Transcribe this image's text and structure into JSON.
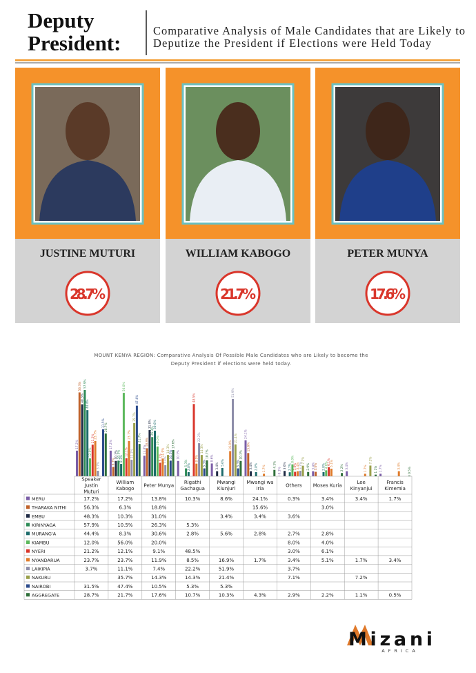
{
  "header": {
    "title": [
      "Deputy",
      "President:"
    ],
    "subtitle": [
      "Comparative Analysis of Male Candidates that are Likely to",
      "Deputize the President if Elections were Held Today"
    ]
  },
  "candidates": [
    {
      "name": "JUSTINE MUTURI",
      "percent": "28.7%"
    },
    {
      "name": "WILLIAM KABOGO",
      "percent": "21.7%"
    },
    {
      "name": "PETER MUNYA",
      "percent": "17.6%"
    }
  ],
  "chart_data": {
    "type": "bar",
    "title": [
      "MOUNT KENYA REGION: Comparative Analysis Of Possible Male Candidates who are Likely to become the",
      "Deputy President if elections were held today."
    ],
    "categories": [
      "Speaker Justin Muturi",
      "William Kabogo",
      "Peter Munya",
      "Rigathi Gachagua",
      "Mwangi Kiunjuri",
      "Mwangi wa Iria",
      "Others",
      "Moses Kuria",
      "Lee Kinyanjui",
      "Francis Kimemia"
    ],
    "series": [
      {
        "name": "MERU",
        "color": "#7b5ea7",
        "values": [
          17.2,
          17.2,
          13.8,
          10.3,
          8.6,
          24.1,
          0.3,
          3.4,
          3.4,
          1.7
        ],
        "value_labels": [
          "17.2%",
          "17.2%",
          "13.8%",
          "10.3%",
          "8.6%",
          "24.1%",
          "0.3%",
          "3.4%",
          "3.4%",
          "1.7%"
        ]
      },
      {
        "name": "THARAKA NITHI",
        "color": "#c0622b",
        "values": [
          56.3,
          6.3,
          18.8,
          null,
          null,
          15.6,
          null,
          3.0,
          null,
          null
        ],
        "value_labels": [
          "56.3%",
          "6.3%",
          "18.8%",
          null,
          null,
          "15.6%",
          null,
          "3.0%",
          null,
          null
        ]
      },
      {
        "name": "EMBU",
        "color": "#1f2a44",
        "values": [
          48.3,
          10.3,
          31.0,
          null,
          3.4,
          3.4,
          3.6,
          null,
          null,
          null
        ],
        "value_labels": [
          "48.3%",
          "10.3%",
          "31.0%",
          null,
          "3.4%",
          "3.4%",
          "3.6%",
          null,
          null,
          null
        ]
      },
      {
        "name": "KIRINYAGA",
        "color": "#2e8b57",
        "values": [
          57.9,
          10.5,
          26.3,
          5.3,
          null,
          null,
          null,
          null,
          null,
          null
        ],
        "value_labels": [
          "57.9%",
          "10.5%",
          "26.3%",
          "5.3%",
          null,
          null,
          null,
          null,
          null,
          null
        ]
      },
      {
        "name": "MURANG'A",
        "color": "#1d6b6b",
        "values": [
          44.4,
          8.3,
          30.6,
          2.8,
          5.6,
          2.8,
          2.7,
          2.8,
          null,
          null
        ],
        "value_labels": [
          "44.4%",
          "8.3%",
          "30.6%",
          "2.8%",
          "5.6%",
          "2.8%",
          "2.7%",
          "2.8%",
          null,
          null
        ]
      },
      {
        "name": "KIAMBU",
        "color": "#5cb85c",
        "values": [
          12.0,
          56.0,
          20.0,
          null,
          null,
          null,
          8.0,
          4.0,
          null,
          null
        ],
        "value_labels": [
          "12.0%",
          "56.0%",
          "20.0%",
          null,
          null,
          null,
          "8.0%",
          "4.0%",
          null,
          null
        ]
      },
      {
        "name": "NYERI",
        "color": "#d9362b",
        "values": [
          21.2,
          12.1,
          9.1,
          48.5,
          null,
          null,
          3.0,
          6.1,
          null,
          null
        ],
        "value_labels": [
          "21.2%",
          "12.1%",
          "9.1%",
          "48.5%",
          null,
          null,
          "3.0%",
          "6.1%",
          null,
          null
        ]
      },
      {
        "name": "NYANDARUA",
        "color": "#e07b2a",
        "values": [
          23.7,
          23.7,
          11.9,
          8.5,
          16.9,
          1.7,
          3.4,
          5.1,
          1.7,
          3.4
        ],
        "value_labels": [
          "23.7%",
          "23.7%",
          "11.9%",
          "8.5%",
          "16.9%",
          "1.7%",
          "3.4%",
          "5.1%",
          "1.7%",
          "3.4%"
        ]
      },
      {
        "name": "LAIKIPIA",
        "color": "#8e8eaa",
        "values": [
          3.7,
          11.1,
          7.4,
          22.2,
          51.9,
          null,
          3.7,
          null,
          null,
          null
        ],
        "value_labels": [
          "3.7%",
          "11.1%",
          "7.4%",
          "22.2%",
          "51.9%",
          null,
          "3.7%",
          null,
          null,
          null
        ]
      },
      {
        "name": "NAKURU",
        "color": "#9aa04a",
        "values": [
          null,
          35.7,
          14.3,
          14.3,
          21.4,
          null,
          7.1,
          null,
          7.2,
          null
        ],
        "value_labels": [
          null,
          "35.7%",
          "14.3%",
          "14.3%",
          "21.4%",
          null,
          "7.1%",
          null,
          "7.2%",
          null
        ]
      },
      {
        "name": "NAIROBI",
        "color": "#2b4a8b",
        "values": [
          31.5,
          47.4,
          10.5,
          5.3,
          5.3,
          null,
          null,
          null,
          null,
          null
        ],
        "value_labels": [
          "31.5%",
          "47.4%",
          "10.5%",
          "5.3%",
          "5.3%",
          null,
          null,
          null,
          null,
          null
        ]
      },
      {
        "name": "AGGREGATE",
        "color": "#2f6f3a",
        "values": [
          28.7,
          21.7,
          17.6,
          10.7,
          10.3,
          4.3,
          2.9,
          2.2,
          1.1,
          0.5
        ],
        "value_labels": [
          "28.7%",
          "21.7%",
          "17.6%",
          "10.7%",
          "10.3%",
          "4.3%",
          "2.9%",
          "2.2%",
          "1.1%",
          "0.5%"
        ]
      }
    ]
  },
  "footer": {
    "logo": "Mizani",
    "tagline": "AFRICA"
  }
}
